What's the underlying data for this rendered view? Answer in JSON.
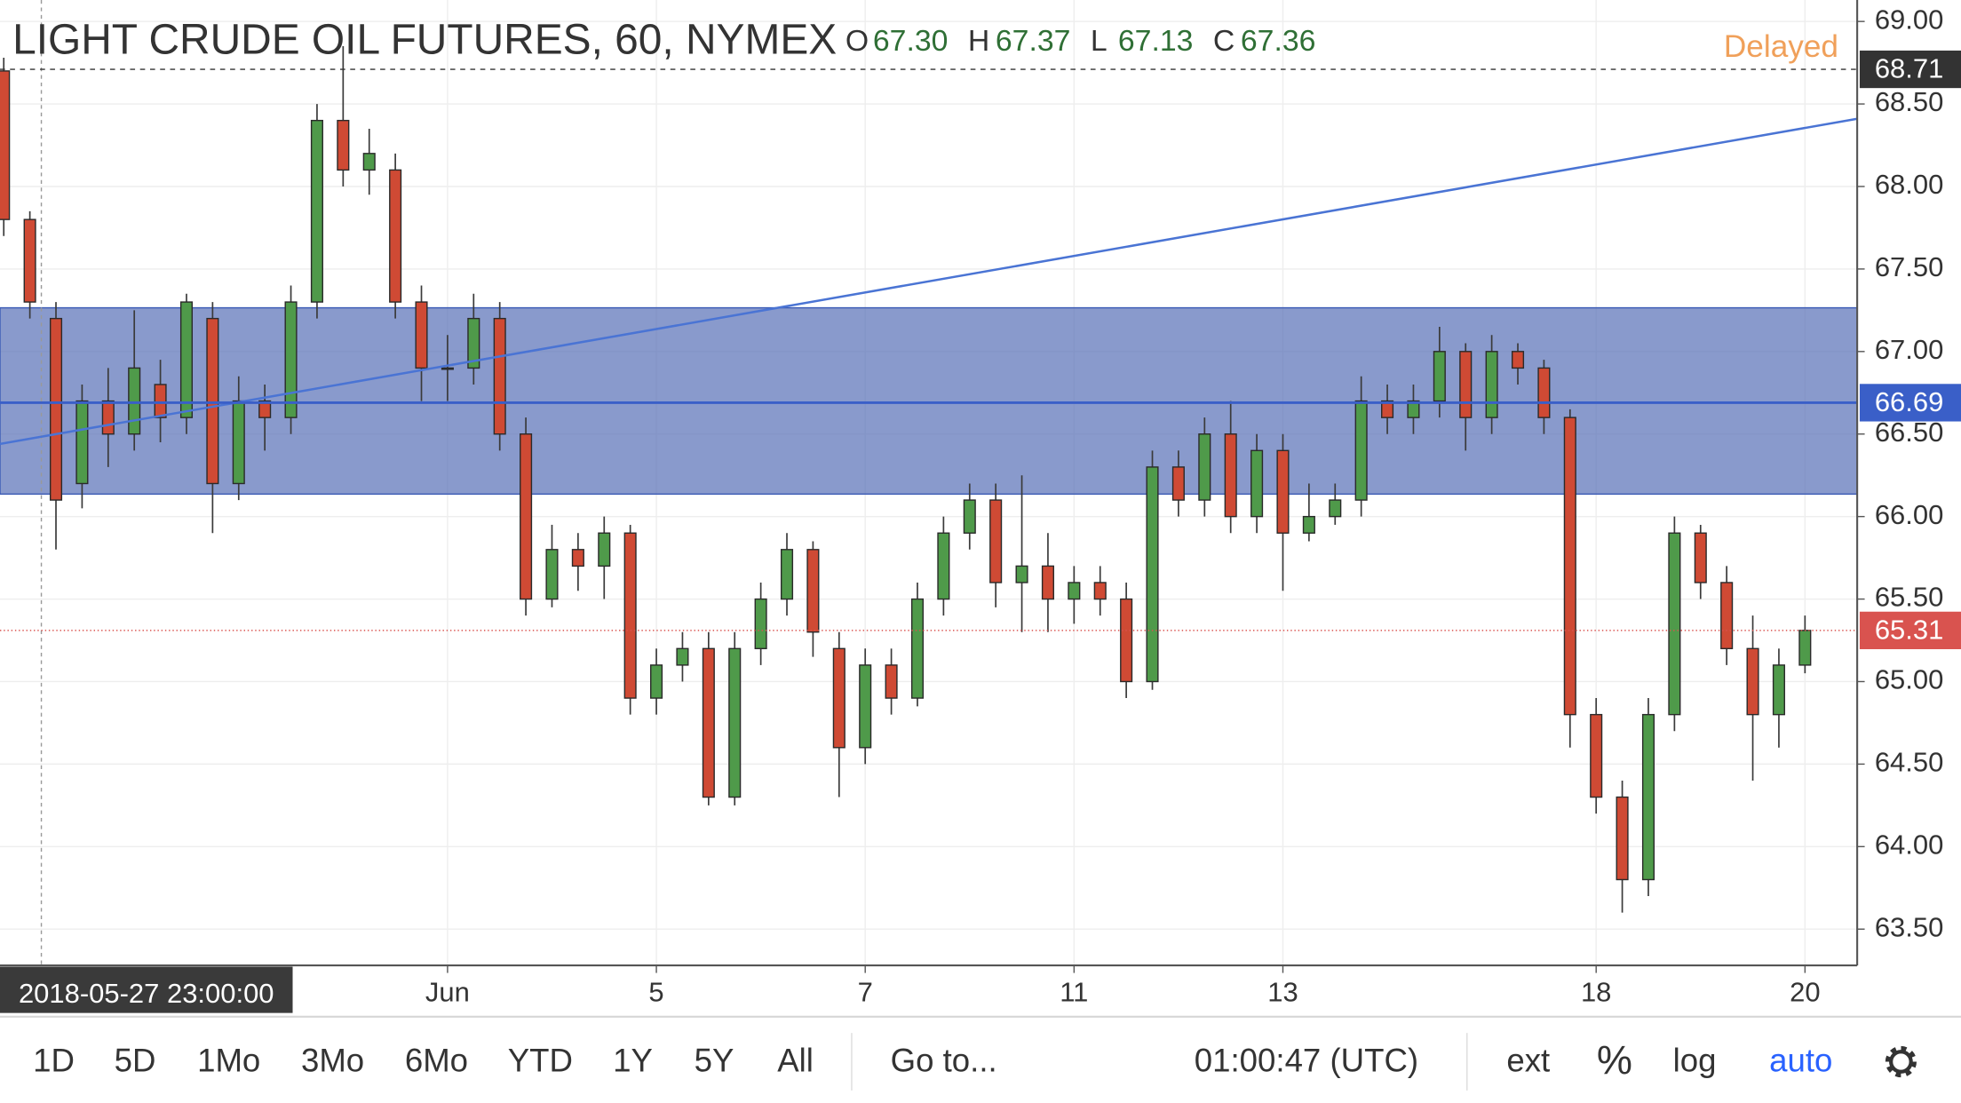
{
  "chart_data": {
    "type": "candlestick",
    "title": "LIGHT CRUDE OIL FUTURES, 60, NYMEX",
    "legend_ohlc": [
      {
        "label": "O",
        "value": "67.30"
      },
      {
        "label": "H",
        "value": "67.37"
      },
      {
        "label": "L",
        "value": "67.13"
      },
      {
        "label": "C",
        "value": "67.36"
      }
    ],
    "status": "Delayed",
    "open": [
      68.7,
      67.8,
      67.2,
      66.2,
      66.7,
      66.5,
      66.8,
      66.6,
      67.2,
      66.2,
      66.7,
      66.6,
      67.3,
      68.4,
      68.1,
      68.1,
      67.3,
      66.9,
      66.9,
      67.2,
      66.5,
      65.5,
      65.8,
      65.7,
      65.9,
      64.9,
      65.1,
      65.2,
      64.3,
      65.2,
      65.5,
      65.8,
      65.2,
      64.6,
      65.1,
      64.9,
      65.5,
      65.9,
      66.1,
      65.6,
      65.7,
      65.5,
      65.6,
      65.5,
      65.0,
      66.3,
      66.1,
      66.5,
      66.0,
      66.4,
      65.9,
      66.0,
      66.1,
      66.7,
      66.6,
      66.7,
      67.0,
      66.6,
      67.0,
      66.9,
      66.6,
      64.8,
      64.3,
      63.8,
      64.8,
      65.9,
      65.6,
      65.2,
      64.8,
      65.1
    ],
    "high": [
      68.78,
      67.85,
      67.3,
      66.8,
      66.9,
      67.25,
      66.95,
      67.35,
      67.3,
      66.85,
      66.8,
      67.4,
      68.5,
      68.85,
      68.35,
      68.2,
      67.4,
      67.1,
      67.35,
      67.3,
      66.6,
      65.95,
      65.9,
      66.0,
      65.95,
      65.2,
      65.3,
      65.3,
      65.3,
      65.6,
      65.9,
      65.85,
      65.3,
      65.2,
      65.2,
      65.6,
      66.0,
      66.2,
      66.2,
      66.25,
      65.9,
      65.7,
      65.7,
      65.6,
      66.4,
      66.4,
      66.6,
      66.7,
      66.5,
      66.5,
      66.2,
      66.2,
      66.85,
      66.8,
      66.8,
      67.15,
      67.05,
      67.1,
      67.05,
      66.95,
      66.65,
      64.9,
      64.4,
      64.9,
      66.0,
      65.95,
      65.7,
      65.4,
      65.2,
      65.4
    ],
    "low": [
      67.7,
      67.2,
      65.8,
      66.05,
      66.3,
      66.4,
      66.45,
      66.5,
      65.9,
      66.1,
      66.4,
      66.5,
      67.2,
      68.0,
      67.95,
      67.2,
      66.7,
      66.7,
      66.8,
      66.4,
      65.4,
      65.45,
      65.55,
      65.5,
      64.8,
      64.8,
      65.0,
      64.25,
      64.25,
      65.1,
      65.4,
      65.15,
      64.3,
      64.5,
      64.8,
      64.85,
      65.4,
      65.8,
      65.45,
      65.3,
      65.3,
      65.35,
      65.4,
      64.9,
      64.95,
      66.0,
      66.0,
      65.9,
      65.9,
      65.55,
      65.85,
      65.95,
      66.0,
      66.5,
      66.5,
      66.6,
      66.4,
      66.5,
      66.8,
      66.5,
      64.6,
      64.2,
      63.6,
      63.7,
      64.7,
      65.5,
      65.1,
      64.4,
      64.6,
      65.05
    ],
    "close": [
      67.8,
      67.3,
      66.1,
      66.7,
      66.5,
      66.9,
      66.6,
      67.3,
      66.2,
      66.7,
      66.6,
      67.3,
      68.4,
      68.1,
      68.2,
      67.3,
      66.9,
      66.9,
      67.2,
      66.5,
      65.5,
      65.8,
      65.7,
      65.9,
      64.9,
      65.1,
      65.2,
      64.3,
      65.2,
      65.5,
      65.8,
      65.3,
      64.6,
      65.1,
      64.9,
      65.5,
      65.9,
      66.1,
      65.6,
      65.7,
      65.5,
      65.6,
      65.5,
      65.0,
      66.3,
      66.1,
      66.5,
      66.0,
      66.4,
      65.9,
      66.0,
      66.1,
      66.7,
      66.6,
      66.7,
      67.0,
      66.6,
      67.0,
      66.9,
      66.6,
      64.8,
      64.3,
      63.8,
      64.8,
      65.9,
      65.6,
      65.2,
      64.8,
      65.1,
      65.31
    ],
    "up_color": "#4f9a4a",
    "down_color": "#cf4a34",
    "xlim": [
      -0.144,
      71
    ],
    "xticks": [
      {
        "value": 17,
        "label": "Jun"
      },
      {
        "value": 25,
        "label": "5"
      },
      {
        "value": 33,
        "label": "7"
      },
      {
        "value": 41,
        "label": "11"
      },
      {
        "value": 49,
        "label": "13"
      },
      {
        "value": 61,
        "label": "18"
      },
      {
        "value": 69,
        "label": "20"
      }
    ],
    "crosshair": {
      "value": 1.44,
      "label": "2018-05-27 23:00:00"
    },
    "ylim": [
      63.28,
      69.13
    ],
    "yticks": [
      {
        "value": 63.5,
        "label": "63.50"
      },
      {
        "value": 64,
        "label": "64.00"
      },
      {
        "value": 64.5,
        "label": "64.50"
      },
      {
        "value": 65,
        "label": "65.00"
      },
      {
        "value": 65.5,
        "label": "65.50"
      },
      {
        "value": 66,
        "label": "66.00"
      },
      {
        "value": 66.5,
        "label": "66.50"
      },
      {
        "value": 67,
        "label": "67.00"
      },
      {
        "value": 67.5,
        "label": "67.50"
      },
      {
        "value": 68,
        "label": "68.00"
      },
      {
        "value": 68.5,
        "label": "68.50"
      },
      {
        "value": 69,
        "label": "69.00"
      }
    ],
    "grid": true,
    "zone": {
      "low": 66.136,
      "high": 67.265,
      "color": "#5b73b8"
    },
    "trendline": {
      "x": [
        -0.144,
        71
      ],
      "y": [
        66.44,
        68.41
      ],
      "color": "#4a74d4"
    },
    "price_lines": [
      {
        "value": 68.71,
        "color": "#333333",
        "dash": "4 4"
      },
      {
        "value": 66.69,
        "color": "#3a5fc8",
        "dash": "none"
      },
      {
        "value": 65.31,
        "color": "#d9534f",
        "dash": "1 2"
      }
    ]
  },
  "toolbar": {
    "ranges": [
      "1D",
      "5D",
      "1Mo",
      "3Mo",
      "6Mo",
      "YTD",
      "1Y",
      "5Y",
      "All"
    ],
    "goto": "Go to...",
    "clock": "01:00:47 (UTC)",
    "options": [
      "ext",
      "%",
      "log",
      "auto"
    ]
  }
}
